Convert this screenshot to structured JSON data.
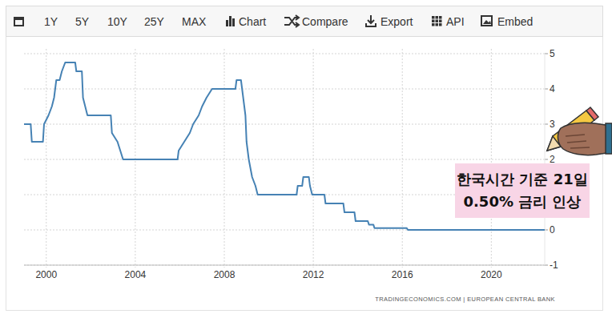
{
  "toolbar": {
    "items": [
      "1Y",
      "5Y",
      "10Y",
      "25Y",
      "MAX",
      "Chart",
      "Compare",
      "Export",
      "API",
      "Embed"
    ]
  },
  "chart_data": {
    "type": "line",
    "color": "#4682b4",
    "grid": true,
    "x": [
      1999.0,
      1999.3,
      1999.35,
      1999.85,
      1999.9,
      2000.1,
      2000.25,
      2000.35,
      2000.45,
      2000.6,
      2000.7,
      2000.85,
      2001.3,
      2001.35,
      2001.6,
      2001.65,
      2001.85,
      2002.9,
      2002.95,
      2003.2,
      2003.45,
      2005.9,
      2005.95,
      2006.2,
      2006.45,
      2006.6,
      2006.85,
      2007.0,
      2007.2,
      2007.45,
      2008.5,
      2008.55,
      2008.75,
      2008.85,
      2008.95,
      2009.0,
      2009.1,
      2009.25,
      2009.4,
      2009.5,
      2011.25,
      2011.3,
      2011.5,
      2011.55,
      2011.8,
      2011.85,
      2011.95,
      2012.5,
      2012.55,
      2013.35,
      2013.4,
      2013.85,
      2013.9,
      2014.45,
      2014.5,
      2014.7,
      2014.75,
      2016.2,
      2016.25,
      2022.4
    ],
    "values": [
      3.0,
      3.0,
      2.5,
      2.5,
      3.0,
      3.25,
      3.5,
      3.75,
      4.25,
      4.25,
      4.5,
      4.75,
      4.75,
      4.5,
      4.5,
      3.75,
      3.25,
      3.25,
      2.75,
      2.5,
      2.0,
      2.0,
      2.25,
      2.5,
      2.75,
      3.0,
      3.25,
      3.5,
      3.75,
      4.0,
      4.0,
      4.25,
      4.25,
      3.75,
      3.25,
      2.5,
      2.0,
      1.5,
      1.25,
      1.0,
      1.0,
      1.25,
      1.25,
      1.5,
      1.5,
      1.25,
      1.0,
      1.0,
      0.75,
      0.75,
      0.5,
      0.5,
      0.25,
      0.25,
      0.15,
      0.15,
      0.05,
      0.05,
      0.0,
      0.0
    ],
    "xlim": [
      1999,
      2022.4
    ],
    "xticks": [
      2000,
      2004,
      2008,
      2012,
      2016,
      2020
    ],
    "ylim": [
      -1,
      5
    ],
    "yticks": [
      -1,
      0,
      1,
      2,
      3,
      4,
      5
    ],
    "annotations": [
      "한국시간 기준 21일",
      "0.50% 금리 인상"
    ],
    "source": "TRADINGECONOMICS.COM  |  EUROPEAN CENTRAL BANK"
  }
}
